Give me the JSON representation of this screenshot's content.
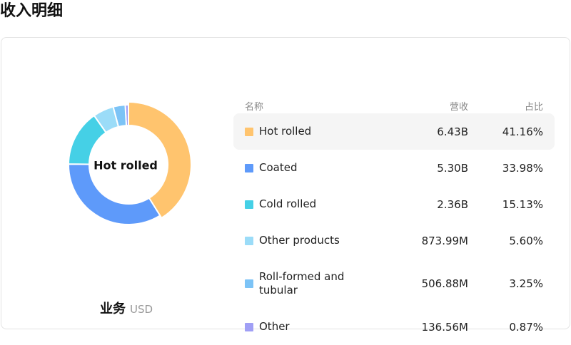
{
  "header": {
    "title": "收入明细"
  },
  "chart_data": {
    "type": "donut",
    "center_label": "Hot rolled",
    "caption": "业务",
    "unit": "USD",
    "columns": [
      "名称",
      "营收",
      "占比"
    ],
    "categories": [
      "Hot rolled",
      "Coated",
      "Cold rolled",
      "Other products",
      "Roll-formed and tubular",
      "Other"
    ],
    "values": [
      41.16,
      33.98,
      15.13,
      5.6,
      3.25,
      0.87
    ],
    "value_labels": [
      "41.16%",
      "33.98%",
      "15.13%",
      "5.60%",
      "3.25%",
      "0.87%"
    ],
    "revenue_labels": [
      "6.43B",
      "5.30B",
      "2.36B",
      "873.99M",
      "506.88M",
      "136.56M"
    ],
    "colors": [
      "#ffc46e",
      "#5e9afa",
      "#45d0e6",
      "#9bdcf8",
      "#7cc3f6",
      "#a09ff5"
    ]
  }
}
